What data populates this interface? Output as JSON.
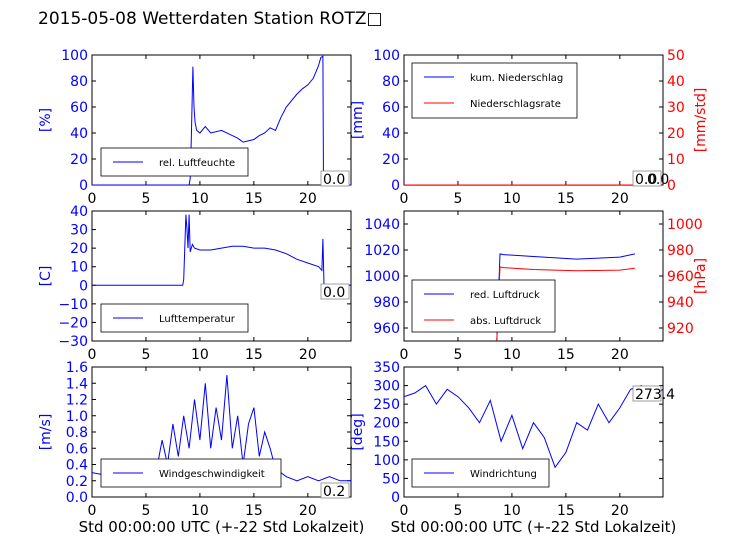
{
  "title": "2015-05-08 Wetterdaten Station ROTZ□",
  "colors": {
    "primary": "#0000ff",
    "secondary": "#ff0000",
    "text": "#000000"
  },
  "chart_data": [
    {
      "type": "line",
      "xlabel": "",
      "ylabel": "[%]",
      "xlim": [
        0,
        24
      ],
      "ylim": [
        0,
        100
      ],
      "xticks": [
        "0",
        "5",
        "10",
        "15",
        "20"
      ],
      "yticks": [
        "0",
        "20",
        "40",
        "60",
        "80",
        "100"
      ],
      "legend": "lower-left",
      "annotation": "0.0",
      "series": [
        {
          "name": "rel. Luftfeuchte",
          "color": "#0000ff",
          "x": [
            0,
            9.0,
            9.1,
            9.2,
            9.35,
            9.45,
            9.55,
            9.7,
            10.0,
            10.5,
            11,
            12,
            13,
            13.5,
            14,
            15,
            15.5,
            16,
            16.5,
            17,
            17.5,
            18,
            19,
            19.5,
            20,
            20.5,
            20.8,
            21,
            21.2,
            21.4,
            21.45,
            21.6,
            24
          ],
          "y": [
            0,
            0,
            5,
            35,
            91,
            60,
            48,
            42,
            40,
            45,
            40,
            42,
            38,
            36,
            33,
            35,
            38,
            40,
            44,
            42,
            52,
            60,
            70,
            74,
            77,
            82,
            88,
            92,
            98,
            99,
            0,
            0,
            0
          ]
        }
      ]
    },
    {
      "type": "line",
      "xlabel": "",
      "ylabel": "[mm]",
      "ylabel_right": "[mm/std]",
      "xlim": [
        0,
        24
      ],
      "ylim": [
        0,
        100
      ],
      "ylim_right": [
        0,
        50
      ],
      "xticks": [
        "0",
        "5",
        "10",
        "15",
        "20"
      ],
      "yticks": [
        "0",
        "20",
        "40",
        "60",
        "80",
        "100"
      ],
      "yticks_right": [
        "0",
        "10",
        "20",
        "30",
        "40",
        "50"
      ],
      "legend": "upper-left",
      "annotation": "0.0",
      "annotation_right": "0.0",
      "series": [
        {
          "name": "kum. Niederschlag",
          "color": "#0000ff",
          "x": [
            0,
            21.5
          ],
          "y": [
            0,
            0
          ]
        },
        {
          "name": "Niederschlagsrate",
          "color": "#ff0000",
          "x": [
            0,
            21.5
          ],
          "y": [
            0,
            0
          ]
        }
      ]
    },
    {
      "type": "line",
      "xlabel": "",
      "ylabel": "[C]",
      "xlim": [
        0,
        24
      ],
      "ylim": [
        -30,
        40
      ],
      "xticks": [
        "0",
        "5",
        "10",
        "15",
        "20"
      ],
      "yticks": [
        "−30",
        "−20",
        "−10",
        "0",
        "10",
        "20",
        "30",
        "40"
      ],
      "legend": "lower-left",
      "annotation": "0.0",
      "series": [
        {
          "name": "Lufttemperatur",
          "color": "#0000ff",
          "x": [
            0,
            8.4,
            8.5,
            8.7,
            8.8,
            8.9,
            9.0,
            9.1,
            9.3,
            9.5,
            10,
            11,
            12,
            13,
            14,
            15,
            16,
            17,
            18,
            19,
            20,
            21,
            21.3,
            21.4,
            21.5,
            21.6,
            24
          ],
          "y": [
            0,
            0,
            3,
            38,
            30,
            20,
            38,
            18,
            22,
            20,
            19,
            19,
            20,
            21,
            21,
            20,
            20,
            19,
            17,
            14,
            12,
            10,
            8,
            25,
            0,
            0,
            0
          ]
        }
      ]
    },
    {
      "type": "line",
      "xlabel": "",
      "ylabel": "",
      "ylabel_right": "[hPa]",
      "xlim": [
        0,
        24
      ],
      "ylim": [
        950,
        1050
      ],
      "ylim_right": [
        910,
        1010
      ],
      "xticks": [
        "0",
        "5",
        "10",
        "15",
        "20"
      ],
      "yticks": [
        "960",
        "980",
        "1000",
        "1020",
        "1040"
      ],
      "yticks_right": [
        "920",
        "940",
        "960",
        "980",
        "1000"
      ],
      "legend": "lower-left",
      "series": [
        {
          "name": "red. Luftdruck",
          "color": "#0000ff",
          "x": [
            8.6,
            8.9,
            9.2,
            12,
            16,
            20,
            21.4
          ],
          "y": [
            950,
            1017,
            1016.5,
            1015,
            1013,
            1014.5,
            1017
          ]
        },
        {
          "name": "abs. Luftdruck",
          "color": "#ff0000",
          "x": [
            8.6,
            8.9,
            9.2,
            12,
            16,
            20,
            21.4
          ],
          "y": [
            910,
            967,
            966.5,
            965,
            964,
            964.5,
            966
          ]
        }
      ]
    },
    {
      "type": "line",
      "xlabel": "Std 00:00:00 UTC (+-22 Std Lokalzeit)",
      "ylabel": "[m/s]",
      "xlim": [
        0,
        24
      ],
      "ylim": [
        0,
        1.6
      ],
      "xticks": [
        "0",
        "5",
        "10",
        "15",
        "20"
      ],
      "yticks": [
        "0.0",
        "0.2",
        "0.4",
        "0.6",
        "0.8",
        "1.0",
        "1.2",
        "1.4",
        "1.6"
      ],
      "legend": "lower-center",
      "annotation": "0.2",
      "series": [
        {
          "name": "Windgeschwindigkeit",
          "color": "#0000ff",
          "x": [
            0,
            2,
            4,
            6,
            6.5,
            7,
            7.5,
            8,
            8.5,
            9,
            9.5,
            10,
            10.5,
            11,
            11.5,
            12,
            12.5,
            13,
            13.5,
            14,
            14.5,
            15,
            15.5,
            16,
            16.5,
            17,
            17.5,
            18,
            19,
            20,
            21,
            22,
            23,
            24
          ],
          "y": [
            0.3,
            0.25,
            0.3,
            0.35,
            0.7,
            0.4,
            0.9,
            0.5,
            1.0,
            0.6,
            1.2,
            0.7,
            1.4,
            0.6,
            1.1,
            0.7,
            1.5,
            0.6,
            1.0,
            0.4,
            0.9,
            1.1,
            0.5,
            0.8,
            0.6,
            0.35,
            0.3,
            0.25,
            0.2,
            0.25,
            0.2,
            0.25,
            0.2,
            0.2
          ]
        }
      ]
    },
    {
      "type": "line",
      "xlabel": "Std 00:00:00 UTC (+-22 Std Lokalzeit)",
      "ylabel": "[deg]",
      "xlim": [
        0,
        24
      ],
      "ylim": [
        0,
        350
      ],
      "xticks": [
        "0",
        "5",
        "10",
        "15",
        "20"
      ],
      "yticks": [
        "0",
        "50",
        "100",
        "150",
        "200",
        "250",
        "300",
        "350"
      ],
      "legend": "lower-left",
      "annotation": "273.4",
      "series": [
        {
          "name": "Windrichtung",
          "color": "#0000ff",
          "x": [
            0,
            1,
            2,
            3,
            4,
            5,
            6,
            7,
            8,
            9,
            10,
            11,
            12,
            13,
            14,
            15,
            16,
            17,
            18,
            19,
            20,
            21,
            22,
            23,
            24
          ],
          "y": [
            270,
            280,
            300,
            250,
            290,
            270,
            240,
            200,
            260,
            150,
            220,
            130,
            200,
            160,
            80,
            120,
            200,
            180,
            250,
            200,
            240,
            290,
            300,
            270,
            290
          ]
        }
      ]
    }
  ]
}
